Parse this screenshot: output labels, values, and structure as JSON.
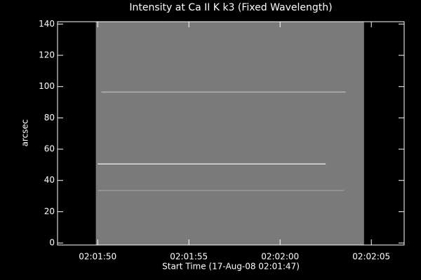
{
  "chart_data": {
    "type": "image",
    "title": "Intensity at Ca II K k3 (Fixed Wavelength)",
    "xlabel": "Start Time (17-Aug-08 02:01:47)",
    "ylabel": "arcsec",
    "xlim": [
      0.8,
      19.8
    ],
    "xticks": [
      {
        "value": 3,
        "label": "02:01:50"
      },
      {
        "value": 8,
        "label": "02:01:55"
      },
      {
        "value": 13,
        "label": "02:02:00"
      },
      {
        "value": 18,
        "label": "02:02:05"
      }
    ],
    "ylim": [
      -1.3,
      141.5
    ],
    "yticks": [
      0,
      20,
      40,
      60,
      80,
      100,
      120,
      140
    ],
    "image": {
      "x": [
        2.9,
        17.6
      ],
      "color": "#7a7a7a"
    },
    "streaks": [
      {
        "y": 96.5,
        "x": [
          3.2,
          16.6
        ],
        "color": "#b4b4b4"
      },
      {
        "y": 50.5,
        "x": [
          3.0,
          15.5
        ],
        "color": "#e0e0e0"
      },
      {
        "y": 33.5,
        "x": [
          3.0,
          16.5
        ],
        "color": "#999999"
      }
    ]
  }
}
